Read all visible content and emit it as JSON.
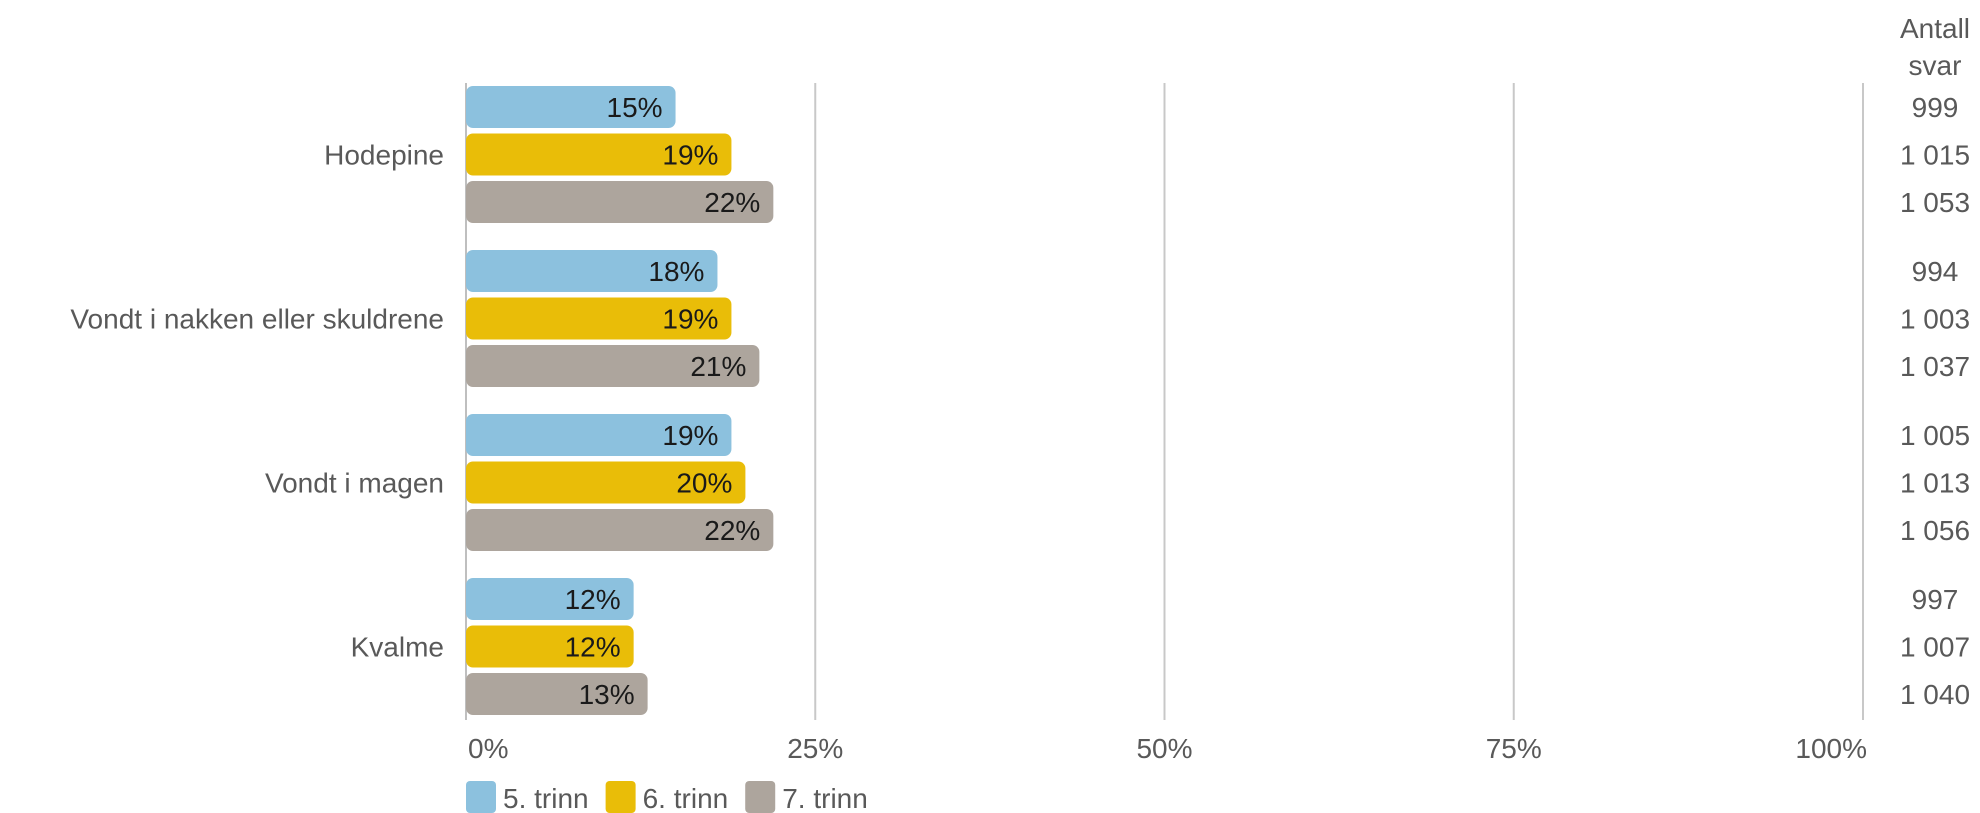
{
  "chart_data": {
    "type": "bar",
    "orientation": "horizontal",
    "categories": [
      "Hodepine",
      "Vondt i nakken eller skuldrene",
      "Vondt i magen",
      "Kvalme"
    ],
    "series": [
      {
        "name": "5. trinn",
        "color": "#8cc1de",
        "values": [
          15,
          18,
          19,
          12
        ],
        "labels": [
          "15%",
          "18%",
          "19%",
          "12%"
        ],
        "counts": [
          "999",
          "994",
          "1 005",
          "997"
        ]
      },
      {
        "name": "6. trinn",
        "color": "#e9bd08",
        "values": [
          19,
          19,
          20,
          12
        ],
        "labels": [
          "19%",
          "19%",
          "20%",
          "12%"
        ],
        "counts": [
          "1 015",
          "1 003",
          "1 013",
          "1 007"
        ]
      },
      {
        "name": "7. trinn",
        "color": "#ada59d",
        "values": [
          22,
          21,
          22,
          13
        ],
        "labels": [
          "22%",
          "21%",
          "22%",
          "13%"
        ],
        "counts": [
          "1 053",
          "1 037",
          "1 056",
          "1 040"
        ]
      }
    ],
    "xlim": [
      0,
      100
    ],
    "xticks": [
      "0%",
      "25%",
      "50%",
      "75%",
      "100%"
    ],
    "count_header": [
      "Antall",
      "svar"
    ],
    "grid": true,
    "legend_position": "bottom-left"
  }
}
